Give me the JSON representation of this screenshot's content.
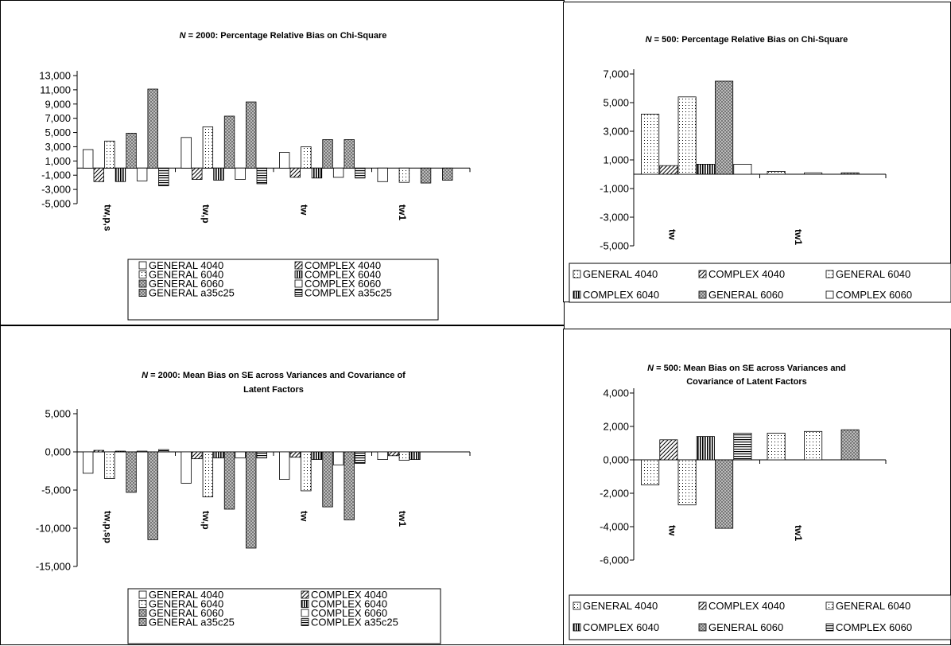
{
  "chart_data": [
    {
      "type": "bar",
      "title_italic": "N",
      "title": " = 2000: Percentage Relative Bias on Chi-Square",
      "title_line2": "",
      "categories": [
        "tw,p,s",
        "tw,p",
        "tw",
        "tw1"
      ],
      "yticks": [
        "13,000",
        "11,000",
        "9,000",
        "7,000",
        "5,000",
        "3,000",
        "1,000",
        "-1,000",
        "-3,000",
        "-5,000"
      ],
      "ylim": [
        -5,
        13
      ],
      "legend_position": "bottom",
      "series": [
        {
          "name": "GENERAL 4040",
          "pattern": "blank",
          "values": [
            2.6,
            4.3,
            2.2,
            -1.9
          ]
        },
        {
          "name": "COMPLEX 4040",
          "pattern": "diag",
          "values": [
            -1.9,
            -1.6,
            -1.3,
            null
          ]
        },
        {
          "name": "GENERAL 6040",
          "pattern": "dots",
          "values": [
            3.8,
            5.8,
            3.0,
            -2.0
          ]
        },
        {
          "name": "COMPLEX 6040",
          "pattern": "vert",
          "values": [
            -1.9,
            -1.7,
            -1.4,
            null
          ]
        },
        {
          "name": "GENERAL 6060",
          "pattern": "checker",
          "values": [
            4.9,
            7.3,
            4.0,
            -2.1
          ]
        },
        {
          "name": "COMPLEX 6060",
          "pattern": "blank",
          "values": [
            -1.8,
            -1.6,
            -1.3,
            null
          ]
        },
        {
          "name": "GENERAL a35c25",
          "pattern": "checker",
          "values": [
            11.1,
            9.3,
            4.0,
            -1.7
          ]
        },
        {
          "name": "COMPLEX a35c25",
          "pattern": "horiz",
          "values": [
            -2.5,
            -2.2,
            -1.4,
            null
          ]
        }
      ]
    },
    {
      "type": "bar",
      "title_italic": "N",
      "title": " = 500: Percentage Relative Bias on Chi-Square",
      "title_line2": "",
      "categories": [
        "tw",
        "tw1"
      ],
      "yticks": [
        "7,000",
        "5,000",
        "3,000",
        "1,000",
        "-1,000",
        "-3,000",
        "-5,000"
      ],
      "ylim": [
        -5,
        7
      ],
      "legend_position": "bottom",
      "series": [
        {
          "name": "GENERAL 4040",
          "pattern": "dots",
          "values": [
            4.2,
            0.2
          ]
        },
        {
          "name": "COMPLEX 4040",
          "pattern": "diag",
          "values": [
            0.6,
            null
          ]
        },
        {
          "name": "GENERAL 6040",
          "pattern": "dots",
          "values": [
            5.4,
            0.1
          ]
        },
        {
          "name": "COMPLEX 6040",
          "pattern": "vert",
          "values": [
            0.7,
            null
          ]
        },
        {
          "name": "GENERAL 6060",
          "pattern": "checker",
          "values": [
            6.5,
            0.1
          ]
        },
        {
          "name": "COMPLEX 6060",
          "pattern": "blank",
          "values": [
            0.7,
            null
          ]
        }
      ]
    },
    {
      "type": "bar",
      "title_italic": "N",
      "title": " = 2000: Mean Bias on SE across Variances and Covariance of",
      "title_line2": "Latent Factors",
      "categories": [
        "tw,p,sp",
        "tw,p",
        "tw",
        "tw1"
      ],
      "yticks": [
        "5,000",
        "0,000",
        "-5,000",
        "-10,000",
        "-15,000"
      ],
      "ylim": [
        -15,
        5
      ],
      "legend_position": "bottom",
      "series": [
        {
          "name": "GENERAL 4040",
          "pattern": "blank",
          "values": [
            -2.8,
            -4.1,
            -3.6,
            -1.0
          ]
        },
        {
          "name": "COMPLEX 4040",
          "pattern": "diag",
          "values": [
            0.2,
            -0.9,
            -0.7,
            -0.5
          ]
        },
        {
          "name": "GENERAL 6040",
          "pattern": "dots",
          "values": [
            -3.5,
            -5.9,
            -5.1,
            -1.1
          ]
        },
        {
          "name": "COMPLEX 6040",
          "pattern": "vert",
          "values": [
            0.1,
            -0.8,
            -1.0,
            -1.0
          ]
        },
        {
          "name": "GENERAL 6060",
          "pattern": "checker",
          "values": [
            -5.3,
            -7.5,
            -7.2,
            null
          ]
        },
        {
          "name": "COMPLEX 6060",
          "pattern": "blank",
          "values": [
            0.1,
            -0.8,
            -1.7,
            null
          ]
        },
        {
          "name": "GENERAL a35c25",
          "pattern": "checker",
          "values": [
            -11.5,
            -12.6,
            -8.9,
            null
          ]
        },
        {
          "name": "COMPLEX a35c25",
          "pattern": "horiz",
          "values": [
            0.3,
            -0.8,
            -1.5,
            null
          ]
        }
      ]
    },
    {
      "type": "bar",
      "title_italic": "N",
      "title": " = 500: Mean Bias on SE across Variances and",
      "title_line2": "Covariance of Latent Factors",
      "categories": [
        "tw",
        "tw1"
      ],
      "yticks": [
        "4,000",
        "2,000",
        "0,000",
        "-2,000",
        "-4,000",
        "-6,000"
      ],
      "ylim": [
        -6,
        5
      ],
      "legend_position": "bottom",
      "series": [
        {
          "name": "GENERAL 4040",
          "pattern": "dots",
          "values": [
            -1.5,
            1.6
          ]
        },
        {
          "name": "COMPLEX 4040",
          "pattern": "diag",
          "values": [
            1.2,
            null
          ]
        },
        {
          "name": "GENERAL 6040",
          "pattern": "dots",
          "values": [
            -2.7,
            1.7
          ]
        },
        {
          "name": "COMPLEX 6040",
          "pattern": "vert",
          "values": [
            1.4,
            null
          ]
        },
        {
          "name": "GENERAL 6060",
          "pattern": "checker",
          "values": [
            -4.1,
            1.8
          ]
        },
        {
          "name": "COMPLEX 6060",
          "pattern": "horiz",
          "values": [
            1.6,
            null
          ]
        }
      ]
    }
  ]
}
